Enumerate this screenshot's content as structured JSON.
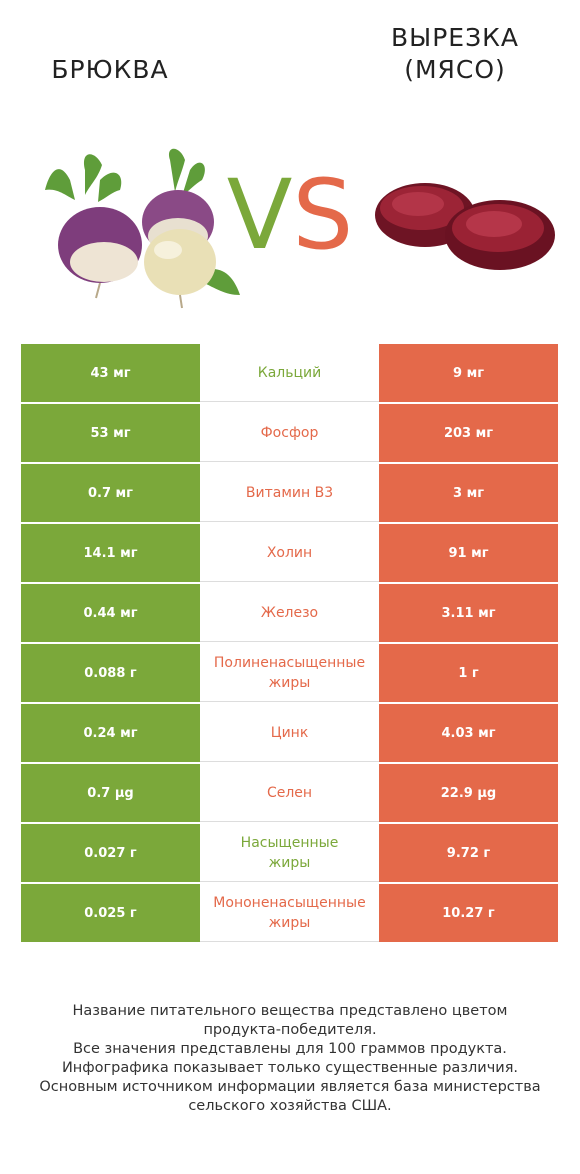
{
  "header": {
    "left_title": "БРЮКВА",
    "right_title_line1": "ВЫРЕЗКА",
    "right_title_line2": "(МЯСО)",
    "vs_v": "V",
    "vs_s": "S"
  },
  "colors": {
    "left_winner": "#7ba83a",
    "right_winner": "#e4694a"
  },
  "rows": [
    {
      "left": "43 мг",
      "name": "Кальций",
      "right": "9 мг",
      "winner": "left"
    },
    {
      "left": "53 мг",
      "name": "Фосфор",
      "right": "203 мг",
      "winner": "right"
    },
    {
      "left": "0.7 мг",
      "name": "Витамин B3",
      "right": "3 мг",
      "winner": "right"
    },
    {
      "left": "14.1 мг",
      "name": "Холин",
      "right": "91 мг",
      "winner": "right"
    },
    {
      "left": "0.44 мг",
      "name": "Железо",
      "right": "3.11 мг",
      "winner": "right"
    },
    {
      "left": "0.088 г",
      "name": "Полиненасыщенные\nжиры",
      "right": "1 г",
      "winner": "right"
    },
    {
      "left": "0.24 мг",
      "name": "Цинк",
      "right": "4.03 мг",
      "winner": "right"
    },
    {
      "left": "0.7 µg",
      "name": "Селен",
      "right": "22.9 µg",
      "winner": "right"
    },
    {
      "left": "0.027 г",
      "name": "Насыщенные\nжиры",
      "right": "9.72 г",
      "winner": "left"
    },
    {
      "left": "0.025 г",
      "name": "Мононенасыщенные\nжиры",
      "right": "10.27 г",
      "winner": "right"
    }
  ],
  "footer": {
    "line1": "Название питательного вещества представлено цветом",
    "line2": "продукта-победителя.",
    "line3": "Все значения представлены для 100 граммов продукта.",
    "line4": "Инфографика показывает только существенные различия.",
    "line5": "Основным источником информации является база министерства",
    "line6": "сельского хозяйства США."
  }
}
